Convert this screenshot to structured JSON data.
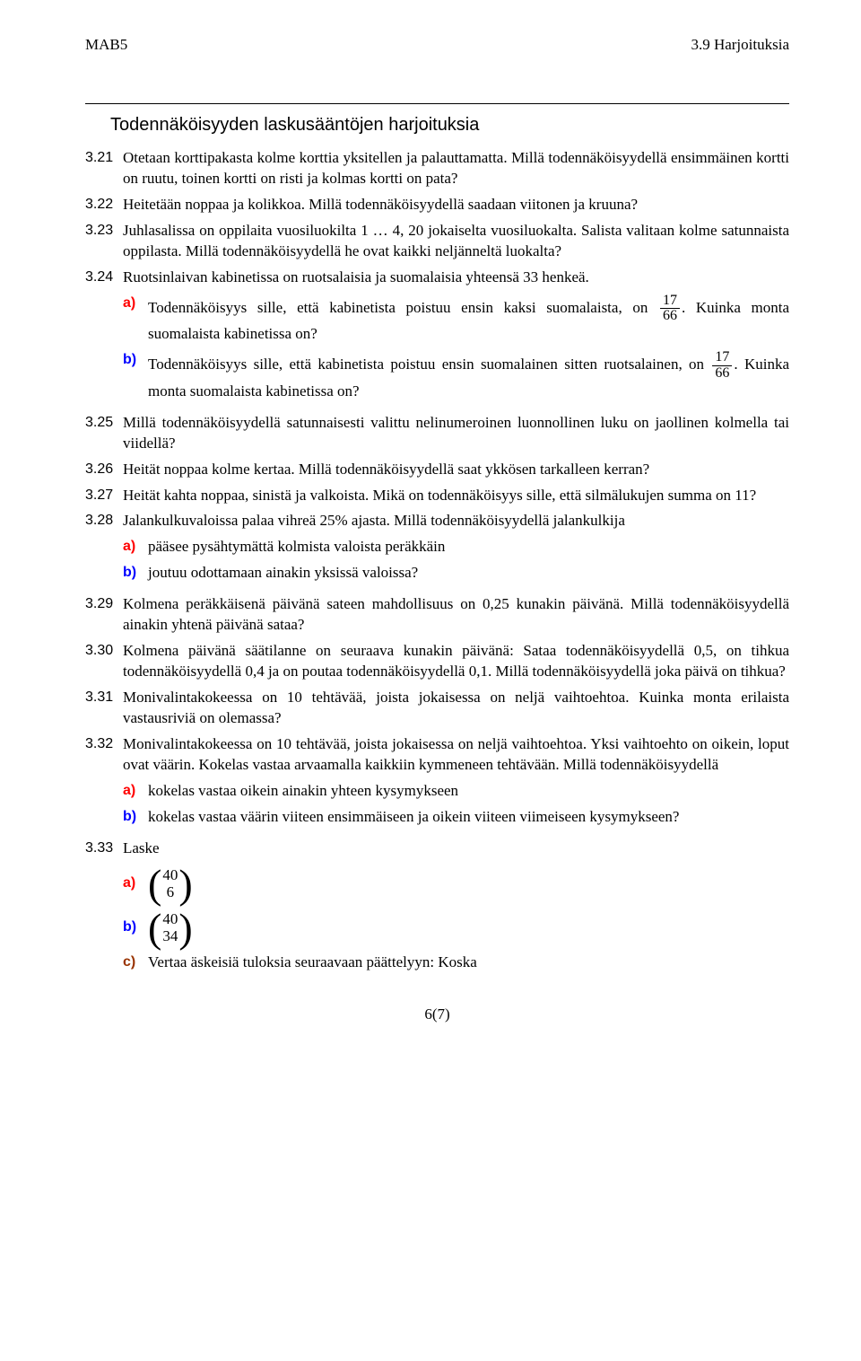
{
  "header": {
    "left": "MAB5",
    "right": "3.9 Harjoituksia"
  },
  "section_title": "Todennäköisyyden laskusääntöjen harjoituksia",
  "items": {
    "i321": {
      "num": "3.21",
      "text": "Otetaan korttipakasta kolme korttia yksitellen ja palauttamatta. Millä todennäköisyydellä ensimmäinen kortti on ruutu, toinen kortti on risti ja kolmas kortti on pata?"
    },
    "i322": {
      "num": "3.22",
      "text": "Heitetään noppaa ja kolikkoa. Millä todennäköisyydellä saadaan viitonen ja kruuna?"
    },
    "i323": {
      "num": "3.23",
      "text": "Juhlasalissa on oppilaita vuosiluokilta 1 … 4, 20 jokaiselta vuosiluokalta. Salista valitaan kolme satunnaista oppilasta. Millä todennäköisyydellä he ovat kaikki neljänneltä luokalta?"
    },
    "i324": {
      "num": "3.24",
      "text": "Ruotsinlaivan kabinetissa on ruotsalaisia ja suomalaisia yhteensä 33 henkeä.",
      "a_pre": "Todennäköisyys sille, että kabinetista poistuu ensin kaksi suomalaista, on ",
      "a_post": ". Kuinka monta suomalaista kabinetissa on?",
      "b_pre": "Todennäköisyys sille, että kabinetista poistuu ensin suomalainen sitten ruotsalainen, on ",
      "b_post": ". Kuinka monta suomalaista kabinetissa on?",
      "frac_n": "17",
      "frac_d": "66"
    },
    "i325": {
      "num": "3.25",
      "text": "Millä todennäköisyydellä satunnaisesti valittu nelinumeroinen luonnollinen luku on jaollinen kolmella tai viidellä?"
    },
    "i326": {
      "num": "3.26",
      "text": "Heität noppaa kolme kertaa. Millä todennäköisyydellä saat ykkösen tarkalleen kerran?"
    },
    "i327": {
      "num": "3.27",
      "text": "Heität kahta noppaa, sinistä ja valkoista. Mikä on todennäköisyys sille, että silmälukujen summa on 11?"
    },
    "i328": {
      "num": "3.28",
      "text": "Jalankulkuvaloissa palaa vihreä 25% ajasta. Millä todennäköisyydellä jalankulkija",
      "a": "pääsee pysähtymättä kolmista valoista peräkkäin",
      "b": "joutuu odottamaan ainakin yksissä valoissa?"
    },
    "i329": {
      "num": "3.29",
      "text": "Kolmena peräkkäisenä päivänä sateen mahdollisuus on 0,25 kunakin päivänä. Millä todennäköisyydellä ainakin yhtenä päivänä sataa?"
    },
    "i330": {
      "num": "3.30",
      "text": "Kolmena päivänä säätilanne on seuraava kunakin päivänä: Sataa todennäköisyydellä 0,5, on tihkua todennäköisyydellä 0,4 ja on poutaa todennäköisyydellä 0,1. Millä todennäköisyydellä joka päivä on tihkua?"
    },
    "i331": {
      "num": "3.31",
      "text": "Monivalintakokeessa on 10 tehtävää, joista jokaisessa on neljä vaihtoehtoa. Kuinka monta erilaista vastausriviä on olemassa?"
    },
    "i332": {
      "num": "3.32",
      "text": "Monivalintakokeessa on 10 tehtävää, joista jokaisessa on neljä vaihtoehtoa. Yksi vaihtoehto on oikein, loput ovat väärin. Kokelas vastaa arvaamalla kaikkiin kymmeneen tehtävään. Millä todennäköisyydellä",
      "a": "kokelas vastaa oikein ainakin yhteen kysymykseen",
      "b": "kokelas vastaa väärin viiteen ensimmäiseen ja oikein viiteen viimeiseen kysymykseen?"
    },
    "i333": {
      "num": "3.33",
      "text": "Laske",
      "a_top": "40",
      "a_bot": "6",
      "b_top": "40",
      "b_bot": "34",
      "c": "Vertaa äskeisiä tuloksia seuraavaan päättelyyn: Koska"
    }
  },
  "labels": {
    "a": "a)",
    "b": "b)",
    "c": "c)"
  },
  "page_num": "6(7)"
}
